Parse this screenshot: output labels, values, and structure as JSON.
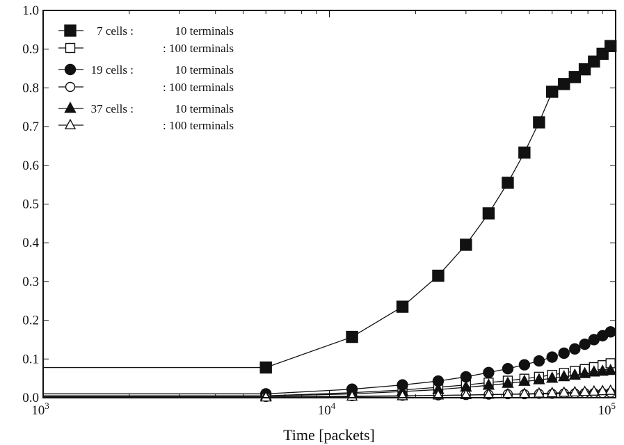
{
  "chart_data": {
    "type": "line",
    "xscale": "log",
    "xlabel": "Time [packets]",
    "ylabel": "",
    "title": "",
    "xlim": [
      1000,
      100000
    ],
    "ylim": [
      0,
      1.0
    ],
    "x_ticks": [
      {
        "value": 1000,
        "base": "10",
        "exp": "3"
      },
      {
        "value": 10000,
        "base": "10",
        "exp": "4"
      },
      {
        "value": 100000,
        "base": "10",
        "exp": "5"
      }
    ],
    "y_ticks": [
      "0.0",
      "0.1",
      "0.2",
      "0.3",
      "0.4",
      "0.5",
      "0.6",
      "0.7",
      "0.8",
      "0.9",
      "1.0"
    ],
    "legend_position": "top-left",
    "legend": [
      {
        "cells": "7 cells :",
        "terminals": "10 terminals",
        "marker": "square-filled"
      },
      {
        "cells": "",
        "terminals": ": 100 terminals",
        "marker": "square-open"
      },
      {
        "cells": "19 cells :",
        "terminals": "10 terminals",
        "marker": "circle-filled"
      },
      {
        "cells": "",
        "terminals": ": 100 terminals",
        "marker": "circle-open"
      },
      {
        "cells": "37 cells :",
        "terminals": "10 terminals",
        "marker": "triangle-filled"
      },
      {
        "cells": "",
        "terminals": ": 100 terminals",
        "marker": "triangle-open"
      }
    ],
    "x": [
      6000,
      12000,
      18000,
      24000,
      30000,
      36000,
      42000,
      48000,
      54000,
      60000,
      66000,
      72000,
      78000,
      84000,
      90000,
      96000
    ],
    "series": [
      {
        "marker": "square-filled",
        "y0": 0.078,
        "values": [
          0.078,
          0.157,
          0.235,
          0.315,
          0.395,
          0.476,
          0.555,
          0.633,
          0.711,
          0.79,
          0.81,
          0.828,
          0.848,
          0.868,
          0.888,
          0.908
        ]
      },
      {
        "marker": "square-open",
        "y0": 0.005,
        "values": [
          0.005,
          0.013,
          0.02,
          0.027,
          0.033,
          0.039,
          0.044,
          0.049,
          0.054,
          0.059,
          0.064,
          0.069,
          0.074,
          0.079,
          0.084,
          0.089
        ]
      },
      {
        "marker": "circle-filled",
        "y0": 0.01,
        "values": [
          0.01,
          0.022,
          0.033,
          0.043,
          0.054,
          0.065,
          0.075,
          0.085,
          0.095,
          0.105,
          0.115,
          0.126,
          0.138,
          0.15,
          0.16,
          0.17
        ]
      },
      {
        "marker": "circle-open",
        "y0": 0.002,
        "values": [
          0.002,
          0.004,
          0.005,
          0.006,
          0.007,
          0.008,
          0.009,
          0.009,
          0.01,
          0.01,
          0.011,
          0.011,
          0.012,
          0.012,
          0.012,
          0.013
        ]
      },
      {
        "marker": "triangle-filled",
        "y0": 0.004,
        "values": [
          0.004,
          0.01,
          0.016,
          0.021,
          0.027,
          0.032,
          0.037,
          0.042,
          0.046,
          0.05,
          0.054,
          0.058,
          0.062,
          0.066,
          0.068,
          0.07
        ]
      },
      {
        "marker": "triangle-open",
        "y0": 0.001,
        "values": [
          0.001,
          0.003,
          0.004,
          0.006,
          0.007,
          0.008,
          0.009,
          0.01,
          0.011,
          0.012,
          0.013,
          0.014,
          0.015,
          0.016,
          0.017,
          0.018
        ]
      }
    ]
  }
}
